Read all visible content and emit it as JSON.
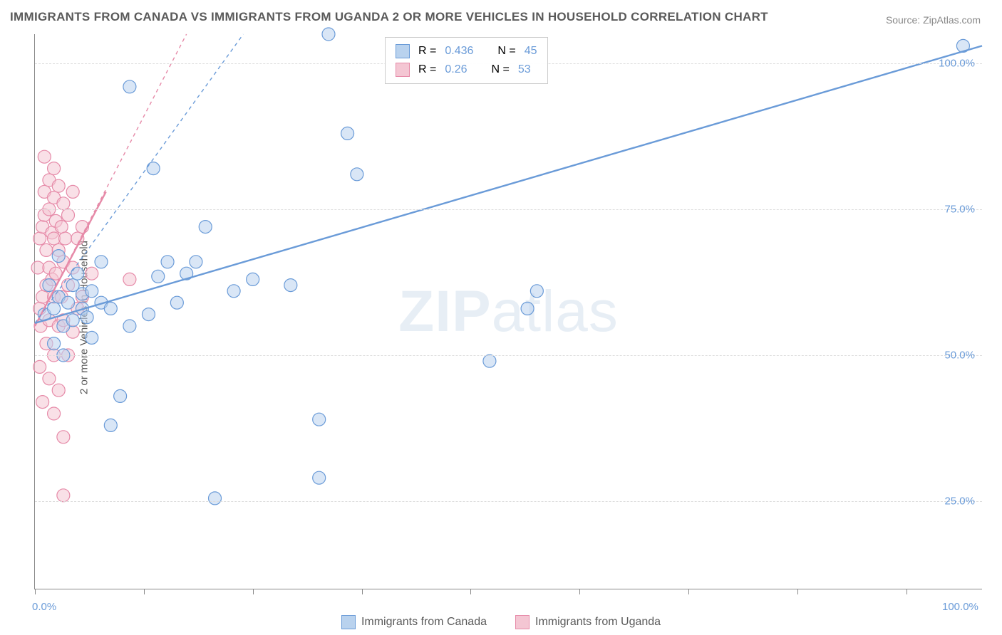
{
  "title": "IMMIGRANTS FROM CANADA VS IMMIGRANTS FROM UGANDA 2 OR MORE VEHICLES IN HOUSEHOLD CORRELATION CHART",
  "source": "Source: ZipAtlas.com",
  "yaxis_label": "2 or more Vehicles in Household",
  "watermark": {
    "bold": "ZIP",
    "rest": "atlas"
  },
  "chart": {
    "type": "scatter",
    "xlim": [
      0,
      100
    ],
    "ylim": [
      10,
      105
    ],
    "xtick_positions": [
      0,
      11.5,
      23,
      34.5,
      46,
      57.5,
      69,
      80.5,
      92
    ],
    "xtick_labels": {
      "0": "0.0%",
      "100": "100.0%"
    },
    "ytick_positions": [
      25,
      50,
      75,
      100
    ],
    "ytick_labels": [
      "25.0%",
      "50.0%",
      "75.0%",
      "100.0%"
    ],
    "ytick_color": "#6a9bd8",
    "xtick_color": "#6a9bd8",
    "grid_color": "#dddddd",
    "background_color": "#ffffff",
    "marker_radius": 9,
    "marker_opacity": 0.55,
    "marker_stroke_width": 1.2,
    "line_width_solid": 2.4,
    "line_width_dash": 1.4,
    "dash_pattern": "5,5",
    "series": [
      {
        "name": "Immigrants from Canada",
        "label": "Immigrants from Canada",
        "color_fill": "#b9d2ee",
        "color_stroke": "#6a9bd8",
        "r": 0.436,
        "n": 45,
        "regression_solid": [
          [
            0,
            55.5
          ],
          [
            100,
            103
          ]
        ],
        "regression_dash": [
          [
            0,
            55.5
          ],
          [
            22,
            105
          ]
        ],
        "points": [
          [
            1,
            57
          ],
          [
            1.5,
            62
          ],
          [
            2,
            52
          ],
          [
            2,
            58
          ],
          [
            2.5,
            60
          ],
          [
            2.5,
            67
          ],
          [
            3,
            55
          ],
          [
            3,
            50
          ],
          [
            3.5,
            59
          ],
          [
            4,
            56
          ],
          [
            4,
            62
          ],
          [
            4.5,
            64
          ],
          [
            5,
            58
          ],
          [
            5,
            60.5
          ],
          [
            5.5,
            56.5
          ],
          [
            6,
            61
          ],
          [
            6,
            53
          ],
          [
            7,
            59
          ],
          [
            7,
            66
          ],
          [
            8,
            58
          ],
          [
            8,
            38
          ],
          [
            9,
            43
          ],
          [
            10,
            55
          ],
          [
            10,
            96
          ],
          [
            12,
            57
          ],
          [
            12.5,
            82
          ],
          [
            13,
            63.5
          ],
          [
            14,
            66
          ],
          [
            15,
            59
          ],
          [
            16,
            64
          ],
          [
            17,
            66
          ],
          [
            18,
            72
          ],
          [
            19,
            25.5
          ],
          [
            21,
            61
          ],
          [
            23,
            63
          ],
          [
            27,
            62
          ],
          [
            30,
            39
          ],
          [
            31,
            105
          ],
          [
            33,
            88
          ],
          [
            34,
            81
          ],
          [
            30,
            29
          ],
          [
            48,
            49
          ],
          [
            52,
            58
          ],
          [
            53,
            61
          ],
          [
            98,
            103
          ]
        ]
      },
      {
        "name": "Immigrants from Uganda",
        "label": "Immigrants from Uganda",
        "color_fill": "#f4c6d3",
        "color_stroke": "#e68aa8",
        "r": 0.26,
        "n": 53,
        "regression_solid": [
          [
            0,
            55
          ],
          [
            7.5,
            78
          ]
        ],
        "regression_dash": [
          [
            0,
            55
          ],
          [
            16,
            105
          ]
        ],
        "points": [
          [
            0.3,
            65
          ],
          [
            0.5,
            70
          ],
          [
            0.5,
            58
          ],
          [
            0.5,
            48
          ],
          [
            0.6,
            55
          ],
          [
            0.8,
            72
          ],
          [
            0.8,
            60
          ],
          [
            0.8,
            42
          ],
          [
            1,
            84
          ],
          [
            1,
            78
          ],
          [
            1,
            74
          ],
          [
            1.2,
            68
          ],
          [
            1.2,
            62
          ],
          [
            1.2,
            52
          ],
          [
            1.5,
            80
          ],
          [
            1.5,
            75
          ],
          [
            1.5,
            65
          ],
          [
            1.5,
            56
          ],
          [
            1.5,
            46
          ],
          [
            1.8,
            71
          ],
          [
            1.8,
            63
          ],
          [
            2,
            82
          ],
          [
            2,
            77
          ],
          [
            2,
            70
          ],
          [
            2,
            60
          ],
          [
            2,
            50
          ],
          [
            2,
            40
          ],
          [
            2.2,
            73
          ],
          [
            2.2,
            64
          ],
          [
            2.5,
            79
          ],
          [
            2.5,
            68
          ],
          [
            2.5,
            55
          ],
          [
            2.5,
            44
          ],
          [
            2.8,
            72
          ],
          [
            2.8,
            60
          ],
          [
            3,
            76
          ],
          [
            3,
            66
          ],
          [
            3,
            56
          ],
          [
            3,
            36
          ],
          [
            3,
            26
          ],
          [
            3.2,
            70
          ],
          [
            3.5,
            74
          ],
          [
            3.5,
            62
          ],
          [
            3.5,
            50
          ],
          [
            4,
            78
          ],
          [
            4,
            65
          ],
          [
            4,
            54
          ],
          [
            4.5,
            70
          ],
          [
            4.5,
            58
          ],
          [
            5,
            72
          ],
          [
            5,
            60
          ],
          [
            6,
            64
          ],
          [
            10,
            63
          ]
        ]
      }
    ],
    "title_fontsize": 17,
    "label_fontsize": 15,
    "legend_fontsize": 16
  },
  "legend_top": {
    "text_color": "#5a5a5a",
    "stat_color": "#6a9bd8",
    "r_label": "R =",
    "n_label": "N ="
  }
}
